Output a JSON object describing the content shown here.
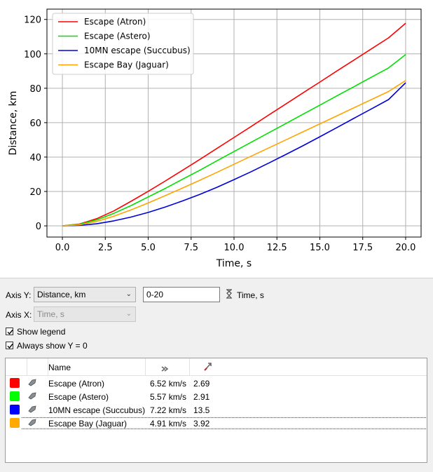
{
  "chart_data": {
    "type": "line",
    "xlabel": "Time, s",
    "ylabel": "Distance, km",
    "xlim": [
      -0.9,
      20.9
    ],
    "ylim": [
      -6.5,
      126
    ],
    "xticks": [
      "0.0",
      "2.5",
      "5.0",
      "7.5",
      "10.0",
      "12.5",
      "15.0",
      "17.5",
      "20.0"
    ],
    "yticks": [
      "0",
      "20",
      "40",
      "60",
      "80",
      "100",
      "120"
    ],
    "grid": true,
    "legend": "top-left",
    "x": [
      0,
      1,
      2,
      3,
      4,
      5,
      6,
      7,
      8,
      9,
      10,
      11,
      12,
      13,
      14,
      15,
      16,
      17,
      18,
      19,
      20
    ],
    "series": [
      {
        "name": "Escape (Atron)",
        "color": "#ff0000",
        "values": [
          0,
          1.1,
          4.2,
          8.7,
          14.3,
          20.1,
          26.1,
          32.3,
          38.6,
          45.0,
          51.4,
          57.8,
          64.3,
          70.7,
          77.2,
          83.6,
          90.1,
          96.5,
          102.9,
          109.3,
          117.8
        ]
      },
      {
        "name": "Escape (Astero)",
        "color": "#00e000",
        "values": [
          0,
          0.9,
          3.5,
          7.3,
          11.8,
          16.8,
          21.8,
          27.1,
          32.3,
          37.8,
          43.2,
          48.6,
          54.0,
          59.4,
          64.8,
          70.2,
          75.6,
          81.0,
          86.4,
          91.8,
          99.6
        ]
      },
      {
        "name": "10MN escape (Succubus)",
        "color": "#0000dd",
        "values": [
          0,
          0.3,
          1.2,
          2.9,
          5.1,
          7.8,
          11.0,
          14.5,
          18.3,
          22.4,
          26.9,
          31.5,
          36.4,
          41.4,
          46.5,
          51.8,
          57.2,
          62.6,
          68.0,
          73.4,
          83.2
        ]
      },
      {
        "name": "Escape Bay (Jaguar)",
        "color": "#ffa500",
        "values": [
          0,
          0.6,
          2.6,
          5.6,
          9.3,
          13.3,
          17.6,
          22.0,
          26.5,
          31.1,
          35.8,
          40.5,
          45.2,
          49.9,
          54.6,
          59.3,
          64.0,
          68.7,
          73.4,
          78.1,
          84.5
        ]
      }
    ]
  },
  "controls": {
    "axis_y_label": "Axis Y:",
    "axis_y_value": "Distance, km",
    "range_value": "0-20",
    "range_axis": "Time, s",
    "axis_x_label": "Axis X:",
    "axis_x_value": "Time, s",
    "show_legend": "Show legend",
    "always_show_y0": "Always show Y = 0"
  },
  "table": {
    "columns": [
      "Name"
    ],
    "rows": [
      {
        "color": "#ff0000",
        "name": "Escape (Atron)",
        "speed": "6.52 km/s",
        "agility": "2.69"
      },
      {
        "color": "#00ff00",
        "name": "Escape (Astero)",
        "speed": "5.57 km/s",
        "agility": "2.91"
      },
      {
        "color": "#0000ff",
        "name": "10MN escape (Succubus)",
        "speed": "7.22 km/s",
        "agility": "13.5"
      },
      {
        "color": "#ffaa00",
        "name": "Escape Bay (Jaguar)",
        "speed": "4.91 km/s",
        "agility": "3.92"
      }
    ]
  }
}
